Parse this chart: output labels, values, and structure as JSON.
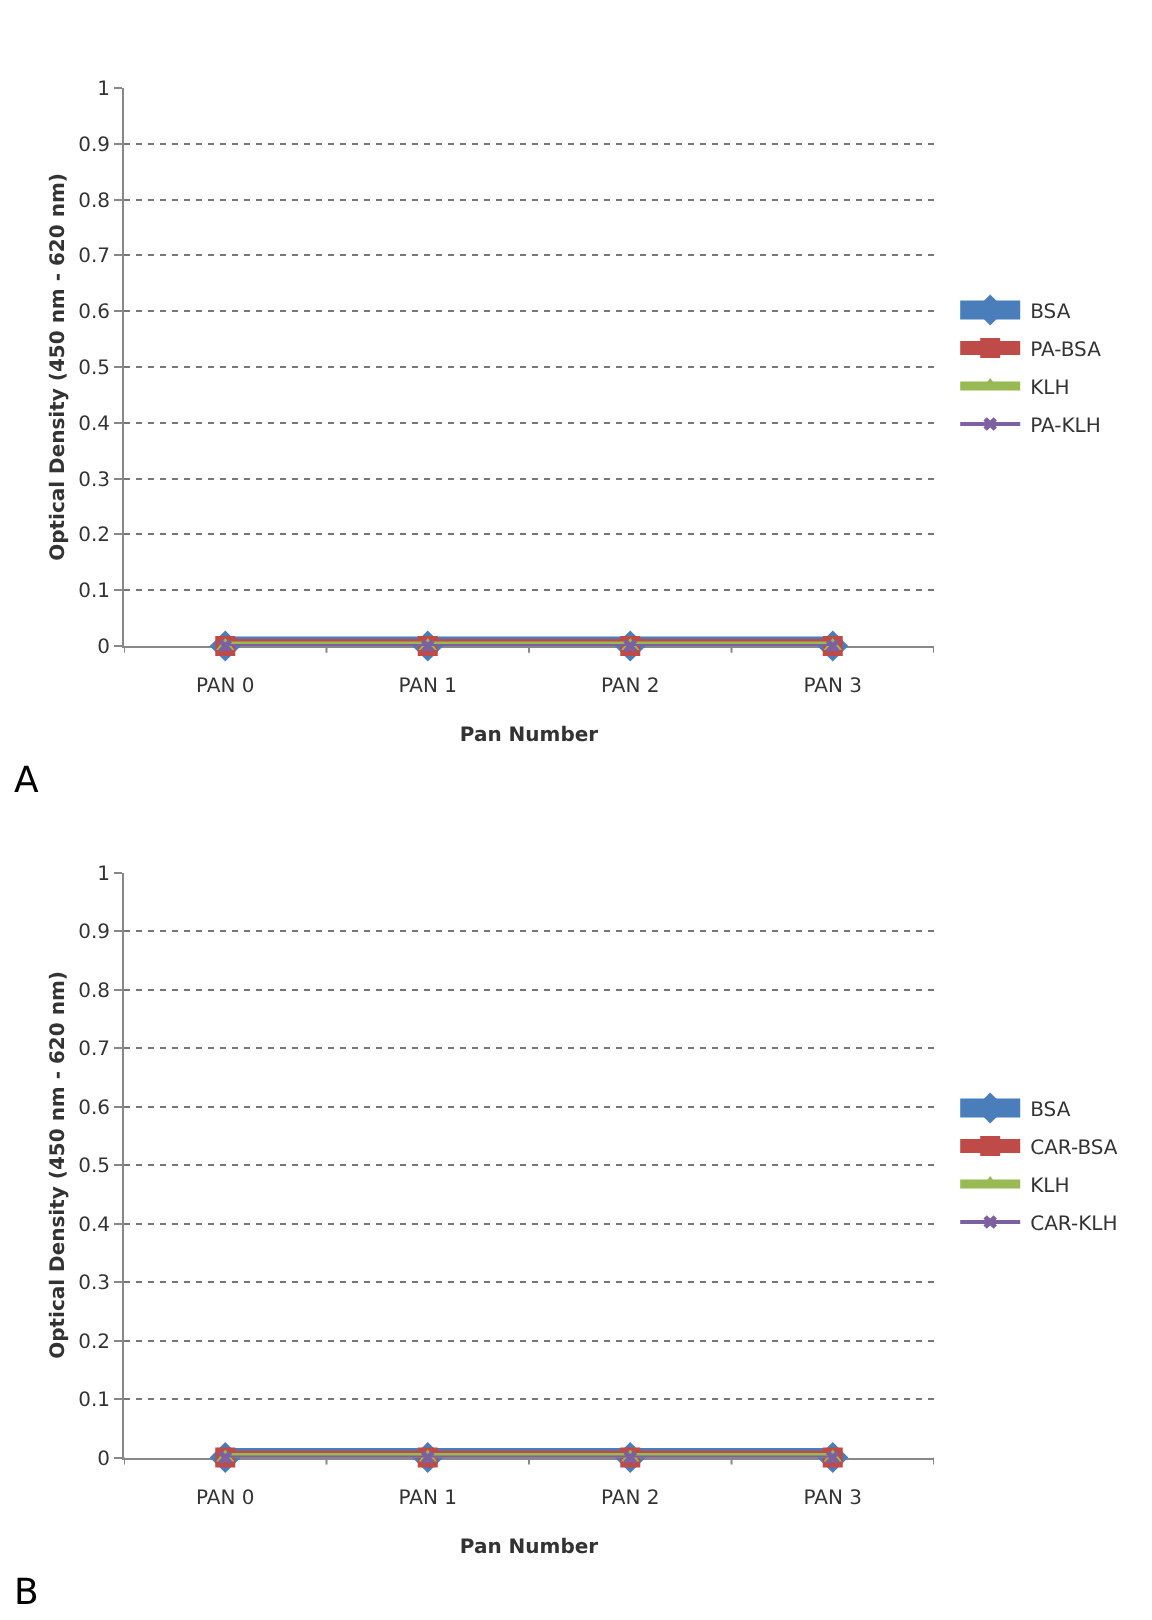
{
  "chart_data": [
    {
      "type": "line",
      "categories": [
        "PAN 0",
        "PAN 1",
        "PAN 2",
        "PAN 3"
      ],
      "xlabel": "Pan Number",
      "ylabel": "Optical Density (450 nm - 620 nm)",
      "ylim": [
        0,
        1
      ],
      "yticks": [
        0,
        0.1,
        0.2,
        0.3,
        0.4,
        0.5,
        0.6,
        0.7,
        0.8,
        0.9,
        1
      ],
      "grid": "y",
      "legend": "right",
      "annotations": [
        "A"
      ],
      "series": [
        {
          "name": "BSA",
          "color": "#4a7ebb",
          "marker": "diamond",
          "values": [
            0,
            0,
            0,
            0
          ]
        },
        {
          "name": "PA-BSA",
          "color": "#be4b48",
          "marker": "square",
          "values": [
            0,
            0,
            0,
            0
          ]
        },
        {
          "name": "KLH",
          "color": "#98b954",
          "marker": "triangle",
          "values": [
            0,
            0,
            0,
            0
          ]
        },
        {
          "name": "PA-KLH",
          "color": "#7d60a0",
          "marker": "cross",
          "values": [
            0,
            0,
            0,
            0
          ]
        }
      ]
    },
    {
      "type": "line",
      "categories": [
        "PAN 0",
        "PAN 1",
        "PAN 2",
        "PAN 3"
      ],
      "xlabel": "Pan Number",
      "ylabel": "Optical Density (450 nm - 620 nm)",
      "ylim": [
        0,
        1
      ],
      "yticks": [
        0,
        0.1,
        0.2,
        0.3,
        0.4,
        0.5,
        0.6,
        0.7,
        0.8,
        0.9,
        1
      ],
      "grid": "y",
      "legend": "right",
      "annotations": [
        "B"
      ],
      "series": [
        {
          "name": "BSA",
          "color": "#4a7ebb",
          "marker": "diamond",
          "values": [
            0,
            0,
            0,
            0
          ]
        },
        {
          "name": "CAR-BSA",
          "color": "#be4b48",
          "marker": "square",
          "values": [
            0,
            0,
            0,
            0
          ]
        },
        {
          "name": "KLH",
          "color": "#98b954",
          "marker": "triangle",
          "values": [
            0,
            0,
            0,
            0
          ]
        },
        {
          "name": "CAR-KLH",
          "color": "#7d60a0",
          "marker": "cross",
          "values": [
            0,
            0,
            0,
            0
          ]
        }
      ]
    }
  ]
}
